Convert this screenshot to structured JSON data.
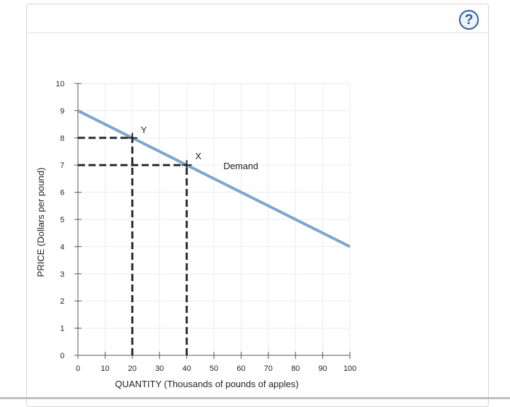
{
  "help": {
    "label": "?"
  },
  "chart_data": {
    "type": "line",
    "xlabel": "QUANTITY (Thousands of pounds of apples)",
    "ylabel": "PRICE (Dollars per pound)",
    "xlim": [
      0,
      100
    ],
    "ylim": [
      0,
      10
    ],
    "xticks": [
      0,
      10,
      20,
      30,
      40,
      50,
      60,
      70,
      80,
      90,
      100
    ],
    "yticks": [
      0,
      1,
      2,
      3,
      4,
      5,
      6,
      7,
      8,
      9,
      10
    ],
    "grid": true,
    "series": [
      {
        "name": "Demand",
        "x": [
          0,
          100
        ],
        "y": [
          9,
          4
        ],
        "color": "#7ba7cf"
      }
    ],
    "points": [
      {
        "label": "Y",
        "x": 20,
        "y": 8
      },
      {
        "label": "X",
        "x": 40,
        "y": 7
      }
    ],
    "dashed_color": "#2b2b2b",
    "grid_color": "#ebebeb",
    "axis_color": "#555555"
  }
}
